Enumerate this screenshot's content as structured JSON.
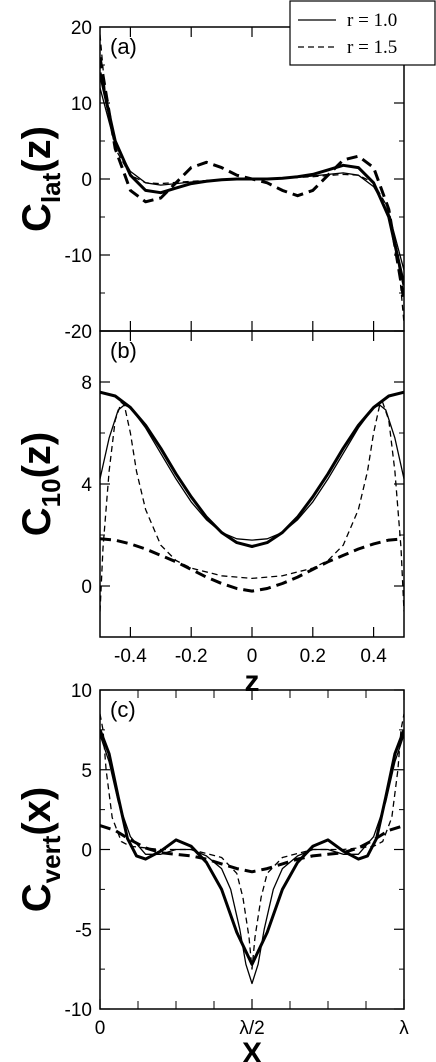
{
  "legend": [
    {
      "label": "r = 1.0",
      "dash": "solid"
    },
    {
      "label": "r = 1.5",
      "dash": "dashed"
    }
  ],
  "chart_data": [
    {
      "type": "line",
      "panel_label": "(a)",
      "ylabel_main": "C",
      "ylabel_sub": "lat",
      "ylabel_tail": "(z)",
      "xlim": [
        -0.5,
        0.5
      ],
      "ylim": [
        -20,
        20
      ],
      "yticks": [
        -20,
        -10,
        0,
        10,
        20
      ],
      "yticklabels": [
        "-20",
        "-10",
        "0",
        "10",
        "20"
      ],
      "series": [
        {
          "dash": "solid",
          "weight": "thick",
          "x": [
            -0.5,
            -0.45,
            -0.4,
            -0.35,
            -0.3,
            -0.25,
            -0.2,
            -0.15,
            -0.1,
            -0.05,
            0,
            0.05,
            0.1,
            0.15,
            0.2,
            0.25,
            0.3,
            0.35,
            0.4,
            0.45,
            0.5
          ],
          "y": [
            14,
            5,
            0.5,
            -1.5,
            -1.8,
            -1.2,
            -0.6,
            -0.3,
            -0.1,
            0,
            0,
            0,
            0.1,
            0.3,
            0.6,
            1.2,
            1.8,
            1.5,
            -0.5,
            -5,
            -14
          ]
        },
        {
          "dash": "solid",
          "weight": "thin",
          "x": [
            -0.5,
            -0.45,
            -0.4,
            -0.35,
            -0.3,
            -0.25,
            -0.2,
            -0.15,
            -0.1,
            -0.05,
            0,
            0.05,
            0.1,
            0.15,
            0.2,
            0.25,
            0.3,
            0.35,
            0.4,
            0.45,
            0.5
          ],
          "y": [
            12,
            4.5,
            1,
            -0.5,
            -0.8,
            -0.6,
            -0.4,
            -0.2,
            -0.1,
            0,
            0,
            0,
            0.1,
            0.2,
            0.4,
            0.6,
            0.8,
            0.5,
            -1,
            -4.5,
            -12
          ]
        },
        {
          "dash": "dashed",
          "weight": "thick",
          "x": [
            -0.5,
            -0.45,
            -0.4,
            -0.35,
            -0.3,
            -0.25,
            -0.2,
            -0.15,
            -0.1,
            -0.05,
            0,
            0.05,
            0.1,
            0.15,
            0.2,
            0.25,
            0.3,
            0.35,
            0.4,
            0.45,
            0.5
          ],
          "y": [
            16,
            4,
            -1.5,
            -3,
            -2.5,
            -0.5,
            1.5,
            2.2,
            1.5,
            0.5,
            0,
            -0.5,
            -1.5,
            -2.2,
            -1.5,
            0.5,
            2.5,
            3,
            1.5,
            -4,
            -16
          ]
        },
        {
          "dash": "dashed",
          "weight": "thin",
          "x": [
            -0.5,
            -0.48,
            -0.45,
            -0.4,
            -0.35,
            -0.3,
            -0.2,
            -0.1,
            0,
            0.1,
            0.2,
            0.3,
            0.35,
            0.4,
            0.45,
            0.48,
            0.5
          ],
          "y": [
            19,
            10,
            4,
            0.5,
            -0.5,
            -0.6,
            -0.3,
            -0.1,
            0,
            0.1,
            0.3,
            0.6,
            0.5,
            -0.5,
            -4,
            -10,
            -19
          ]
        }
      ]
    },
    {
      "type": "line",
      "panel_label": "(b)",
      "ylabel_main": "C",
      "ylabel_sub": "10",
      "ylabel_tail": "(z)",
      "xlabel": "z",
      "xlim": [
        -0.5,
        0.5
      ],
      "ylim": [
        -2,
        10
      ],
      "yticks": [
        0,
        4,
        8
      ],
      "yticklabels": [
        "0",
        "4",
        "8"
      ],
      "xticks": [
        -0.4,
        -0.2,
        0,
        0.2,
        0.4
      ],
      "xticklabels": [
        "-0.4",
        "-0.2",
        "0",
        "0.2",
        "0.4"
      ],
      "series": [
        {
          "dash": "solid",
          "weight": "thick",
          "x": [
            -0.5,
            -0.45,
            -0.4,
            -0.35,
            -0.3,
            -0.25,
            -0.2,
            -0.15,
            -0.1,
            -0.05,
            0,
            0.05,
            0.1,
            0.15,
            0.2,
            0.25,
            0.3,
            0.35,
            0.4,
            0.45,
            0.5
          ],
          "y": [
            7.6,
            7.45,
            7.0,
            6.3,
            5.4,
            4.4,
            3.5,
            2.7,
            2.1,
            1.7,
            1.55,
            1.7,
            2.1,
            2.7,
            3.5,
            4.4,
            5.4,
            6.3,
            7.0,
            7.45,
            7.6
          ]
        },
        {
          "dash": "solid",
          "weight": "thin",
          "x": [
            -0.5,
            -0.47,
            -0.44,
            -0.42,
            -0.4,
            -0.35,
            -0.3,
            -0.25,
            -0.2,
            -0.15,
            -0.1,
            -0.05,
            0,
            0.05,
            0.1,
            0.15,
            0.2,
            0.25,
            0.3,
            0.35,
            0.4,
            0.42,
            0.44,
            0.47,
            0.5
          ],
          "y": [
            4.2,
            5.8,
            6.9,
            7.1,
            7.0,
            6.2,
            5.2,
            4.2,
            3.3,
            2.6,
            2.1,
            1.85,
            1.8,
            1.85,
            2.1,
            2.6,
            3.3,
            4.2,
            5.2,
            6.2,
            7.0,
            7.1,
            6.9,
            5.8,
            4.2
          ]
        },
        {
          "dash": "dashed",
          "weight": "thick",
          "x": [
            -0.5,
            -0.45,
            -0.4,
            -0.35,
            -0.3,
            -0.25,
            -0.2,
            -0.15,
            -0.1,
            -0.05,
            0,
            0.05,
            0.1,
            0.15,
            0.2,
            0.25,
            0.3,
            0.35,
            0.4,
            0.45,
            0.5
          ],
          "y": [
            1.85,
            1.8,
            1.65,
            1.45,
            1.2,
            0.95,
            0.65,
            0.35,
            0.1,
            -0.1,
            -0.2,
            -0.1,
            0.1,
            0.35,
            0.65,
            0.95,
            1.2,
            1.45,
            1.65,
            1.8,
            1.85
          ]
        },
        {
          "dash": "dashed",
          "weight": "thin",
          "x": [
            -0.5,
            -0.49,
            -0.47,
            -0.45,
            -0.43,
            -0.42,
            -0.4,
            -0.38,
            -0.35,
            -0.3,
            -0.25,
            -0.2,
            -0.1,
            0,
            0.1,
            0.2,
            0.25,
            0.3,
            0.35,
            0.38,
            0.4,
            0.42,
            0.43,
            0.45,
            0.47,
            0.49,
            0.5
          ],
          "y": [
            -1,
            1.5,
            4.5,
            6.5,
            7.2,
            7.1,
            6.0,
            4.5,
            3.0,
            1.6,
            1.0,
            0.7,
            0.4,
            0.3,
            0.4,
            0.7,
            1.0,
            1.6,
            3.0,
            4.5,
            6.0,
            7.1,
            7.2,
            6.5,
            4.5,
            1.5,
            -1
          ]
        }
      ]
    },
    {
      "type": "line",
      "panel_label": "(c)",
      "ylabel_main": "C",
      "ylabel_sub": "vert",
      "ylabel_tail": "(x)",
      "xlabel": "X",
      "xlim": [
        0,
        1
      ],
      "ylim": [
        -10,
        10
      ],
      "yticks": [
        -10,
        -5,
        0,
        5,
        10
      ],
      "yticklabels": [
        "-10",
        "-5",
        "0",
        "5",
        "10"
      ],
      "xticks": [
        0,
        0.5,
        1
      ],
      "xticklabels": [
        "0",
        "λ/2",
        "λ"
      ],
      "series": [
        {
          "dash": "solid",
          "weight": "thick",
          "x": [
            0,
            0.03,
            0.06,
            0.09,
            0.12,
            0.15,
            0.2,
            0.25,
            0.3,
            0.35,
            0.4,
            0.45,
            0.5,
            0.55,
            0.6,
            0.65,
            0.7,
            0.75,
            0.8,
            0.85,
            0.88,
            0.91,
            0.94,
            0.97,
            1
          ],
          "y": [
            7.5,
            6,
            3.3,
            0.7,
            -0.4,
            -0.6,
            -0.1,
            0.6,
            0.2,
            -0.8,
            -2.5,
            -5.2,
            -7.2,
            -5.2,
            -2.5,
            -0.8,
            0.2,
            0.6,
            -0.1,
            -0.6,
            -0.4,
            0.7,
            3.3,
            6,
            7.5
          ]
        },
        {
          "dash": "solid",
          "weight": "thin",
          "x": [
            0,
            0.03,
            0.06,
            0.1,
            0.15,
            0.2,
            0.25,
            0.3,
            0.35,
            0.4,
            0.43,
            0.46,
            0.48,
            0.5,
            0.52,
            0.54,
            0.57,
            0.6,
            0.65,
            0.7,
            0.75,
            0.8,
            0.85,
            0.9,
            0.94,
            0.97,
            1
          ],
          "y": [
            7.2,
            5.5,
            3,
            0.8,
            -0.3,
            -0.3,
            0,
            0,
            -0.4,
            -1.2,
            -2.5,
            -5,
            -7.2,
            -8.4,
            -7.2,
            -5,
            -2.5,
            -1.2,
            -0.4,
            0,
            0,
            -0.3,
            -0.3,
            0.8,
            3,
            5.5,
            7.2
          ]
        },
        {
          "dash": "dashed",
          "weight": "thick",
          "x": [
            0,
            0.05,
            0.1,
            0.15,
            0.2,
            0.25,
            0.3,
            0.35,
            0.4,
            0.45,
            0.5,
            0.55,
            0.6,
            0.65,
            0.7,
            0.75,
            0.8,
            0.85,
            0.9,
            0.95,
            1
          ],
          "y": [
            1.5,
            1.2,
            0.6,
            0.1,
            -0.2,
            -0.3,
            -0.4,
            -0.6,
            -0.9,
            -1.2,
            -1.4,
            -1.2,
            -0.9,
            -0.6,
            -0.4,
            -0.3,
            -0.2,
            0.1,
            0.6,
            1.2,
            1.5
          ]
        },
        {
          "dash": "dashed",
          "weight": "thin",
          "x": [
            0,
            0.01,
            0.02,
            0.04,
            0.07,
            0.1,
            0.2,
            0.3,
            0.4,
            0.45,
            0.47,
            0.49,
            0.5,
            0.51,
            0.53,
            0.55,
            0.6,
            0.7,
            0.8,
            0.9,
            0.93,
            0.96,
            0.98,
            0.99,
            1
          ],
          "y": [
            8.5,
            7.5,
            5,
            2,
            0.5,
            0.2,
            0,
            0,
            -0.5,
            -1.5,
            -3,
            -5.5,
            -7.5,
            -5.5,
            -3,
            -1.5,
            -0.5,
            0,
            0,
            0.2,
            0.5,
            2,
            5,
            7.5,
            8.5
          ]
        }
      ]
    }
  ]
}
